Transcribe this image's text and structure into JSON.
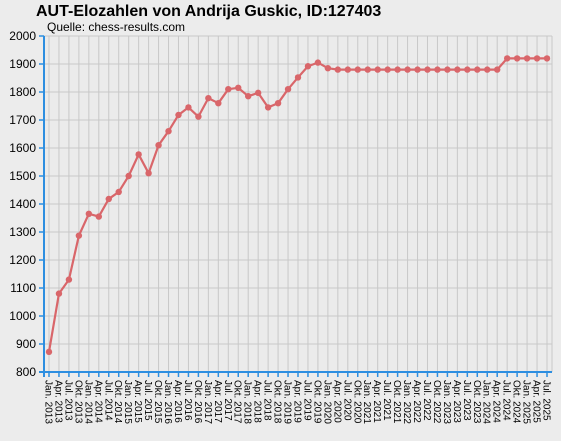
{
  "page": {
    "title": "AUT-Elozahlen von Andrija Guskic, ID:127403",
    "subtitle": "Quelle: chess-results.com"
  },
  "colors": {
    "background": "#ececec",
    "plot_background": "#ebebeb",
    "grid": "#c8c8c8",
    "axis": "#2d8ee0",
    "series": "#d9666a"
  },
  "chart_data": {
    "type": "line",
    "title": "AUT-Elozahlen von Andrija Guskic, ID:127403",
    "subtitle": "Quelle: chess-results.com",
    "xlabel": "",
    "ylabel": "",
    "ylim": [
      800,
      2000
    ],
    "yticks": [
      800,
      900,
      1000,
      1100,
      1200,
      1300,
      1400,
      1500,
      1600,
      1700,
      1800,
      1900,
      2000
    ],
    "grid": true,
    "legend": "none",
    "categories": [
      "Jan. 2013",
      "Apr. 2013",
      "Jul. 2013",
      "Okt. 2013",
      "Jan. 2014",
      "Apr. 2014",
      "Jul. 2014",
      "Okt. 2014",
      "Jan. 2015",
      "Apr. 2015",
      "Jul. 2015",
      "Okt. 2015",
      "Jan. 2016",
      "Apr. 2016",
      "Jul. 2016",
      "Okt. 2016",
      "Jan. 2017",
      "Apr. 2017",
      "Jul. 2017",
      "Okt. 2017",
      "Jan. 2018",
      "Apr. 2018",
      "Jul. 2018",
      "Okt. 2018",
      "Jan. 2019",
      "Apr. 2019",
      "Jul. 2019",
      "Okt. 2019",
      "Jan. 2020",
      "Apr. 2020",
      "Jul. 2020",
      "Okt. 2020",
      "Jan. 2021",
      "Apr. 2021",
      "Jul. 2021",
      "Okt. 2021",
      "Jan. 2022",
      "Apr. 2022",
      "Jul. 2022",
      "Okt. 2022",
      "Jan. 2023",
      "Apr. 2023",
      "Jul. 2023",
      "Okt. 2023",
      "Jan. 2024",
      "Apr. 2024",
      "Jul. 2024",
      "Okt. 2024",
      "Jan. 2025",
      "Apr. 2025",
      "Jul. 2025"
    ],
    "series": [
      {
        "values": [
          872,
          1080,
          1130,
          1287,
          1365,
          1355,
          1418,
          1443,
          1500,
          1577,
          1510,
          1610,
          1660,
          1718,
          1745,
          1712,
          1778,
          1760,
          1810,
          1815,
          1785,
          1797,
          1745,
          1760,
          1810,
          1852,
          1892,
          1905,
          1885,
          1880,
          1880,
          1880,
          1880,
          1880,
          1880,
          1880,
          1880,
          1880,
          1880,
          1880,
          1880,
          1880,
          1880,
          1880,
          1880,
          1880,
          1920,
          1920,
          1920,
          1920,
          1920
        ]
      }
    ]
  }
}
